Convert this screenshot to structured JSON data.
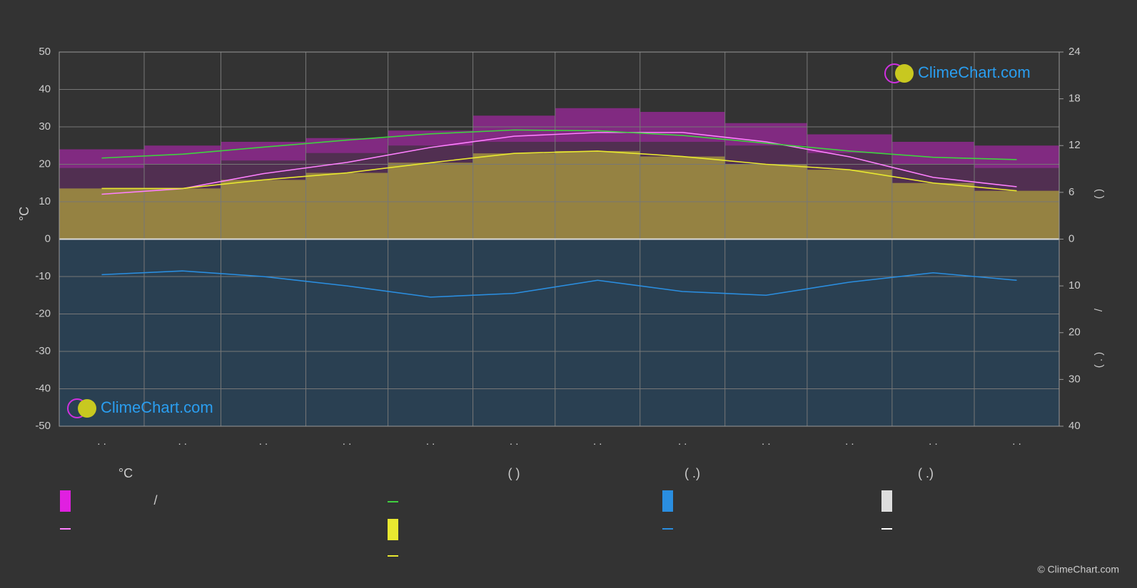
{
  "chart_data": {
    "type": "climate",
    "categories": [
      ". .",
      ". .",
      ". .",
      ". .",
      ". .",
      ". .",
      ". .",
      ". .",
      ". .",
      ". .",
      ". .",
      ". ."
    ],
    "days_in_month": [
      31,
      28,
      31,
      30,
      31,
      30,
      31,
      31,
      30,
      31,
      30,
      31
    ],
    "ylabel": "°C",
    "ylim": [
      -50,
      50
    ],
    "yticks": [
      -50,
      -40,
      -30,
      -20,
      -10,
      0,
      10,
      20,
      30,
      40,
      50
    ],
    "y2lim": [
      0,
      24
    ],
    "y2ticks": [
      0,
      6,
      12,
      18,
      24
    ],
    "precip_lim": [
      0,
      40
    ],
    "precip_ticks": [
      10,
      20,
      30,
      40
    ],
    "right_labels": [
      "(        )",
      "/",
      "(  .  )"
    ],
    "grid": true,
    "temp_range": {
      "color": "#e020e0",
      "low": [
        19,
        20,
        21,
        23,
        25,
        26,
        26,
        26,
        25,
        23,
        20,
        19
      ],
      "high": [
        24,
        25,
        26,
        27,
        29,
        33,
        35,
        34,
        31,
        28,
        26,
        25
      ]
    },
    "series": [
      {
        "color": "#ff80ff",
        "values": [
          12,
          13.5,
          17.5,
          20.5,
          24.5,
          27.5,
          28.5,
          28.5,
          26,
          22,
          16.5,
          14
        ]
      },
      {
        "color": "#40d040",
        "axis": "y2",
        "values": [
          10.4,
          10.9,
          11.8,
          12.7,
          13.5,
          14.0,
          13.9,
          13.3,
          12.3,
          11.3,
          10.5,
          10.2
        ]
      },
      {
        "color": "#e8e830",
        "axis": "y2",
        "fill": true,
        "values": [
          6.5,
          6.5,
          7.6,
          8.5,
          9.8,
          11.0,
          11.3,
          10.6,
          9.6,
          8.9,
          7.2,
          6.2
        ]
      },
      {
        "color": "#2a8ee0",
        "axis": "precip",
        "values": [
          7.6,
          6.8,
          8.0,
          10.0,
          12.4,
          11.6,
          8.8,
          11.2,
          12.0,
          9.2,
          7.2,
          8.8
        ]
      }
    ],
    "legend_headers": [
      "°C",
      "(          )",
      "(    .)",
      "(    .)"
    ],
    "legend_text": "/",
    "logo": "ClimeChart.com",
    "copyright": "© ClimeChart.com"
  }
}
